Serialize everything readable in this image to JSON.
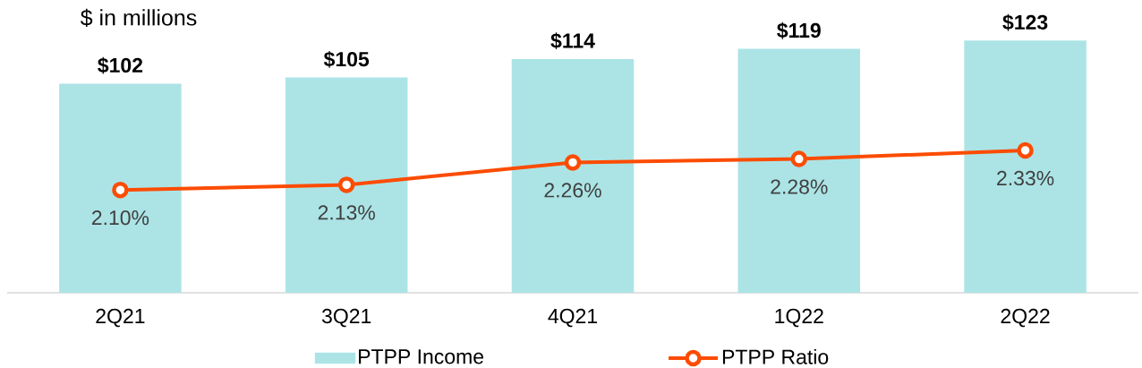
{
  "chart_data": {
    "type": "bar",
    "ylabel": "$ in millions",
    "categories": [
      "2Q21",
      "3Q21",
      "4Q21",
      "1Q22",
      "2Q22"
    ],
    "series": [
      {
        "name": "PTPP Income",
        "color": "#ace4e6",
        "values": [
          102,
          105,
          114,
          119,
          123
        ],
        "value_labels": [
          "$102",
          "$105",
          "$114",
          "$119",
          "$123"
        ]
      },
      {
        "name": "PTPP Ratio",
        "type": "line",
        "axis": "y2",
        "color": "#fc4c02",
        "marker": "circle",
        "values": [
          2.1,
          2.13,
          2.26,
          2.28,
          2.33
        ],
        "value_labels": [
          "2.10%",
          "2.13%",
          "2.26%",
          "2.28%",
          "2.33%"
        ]
      }
    ],
    "tick_labels": "x",
    "legend": "bottom"
  }
}
